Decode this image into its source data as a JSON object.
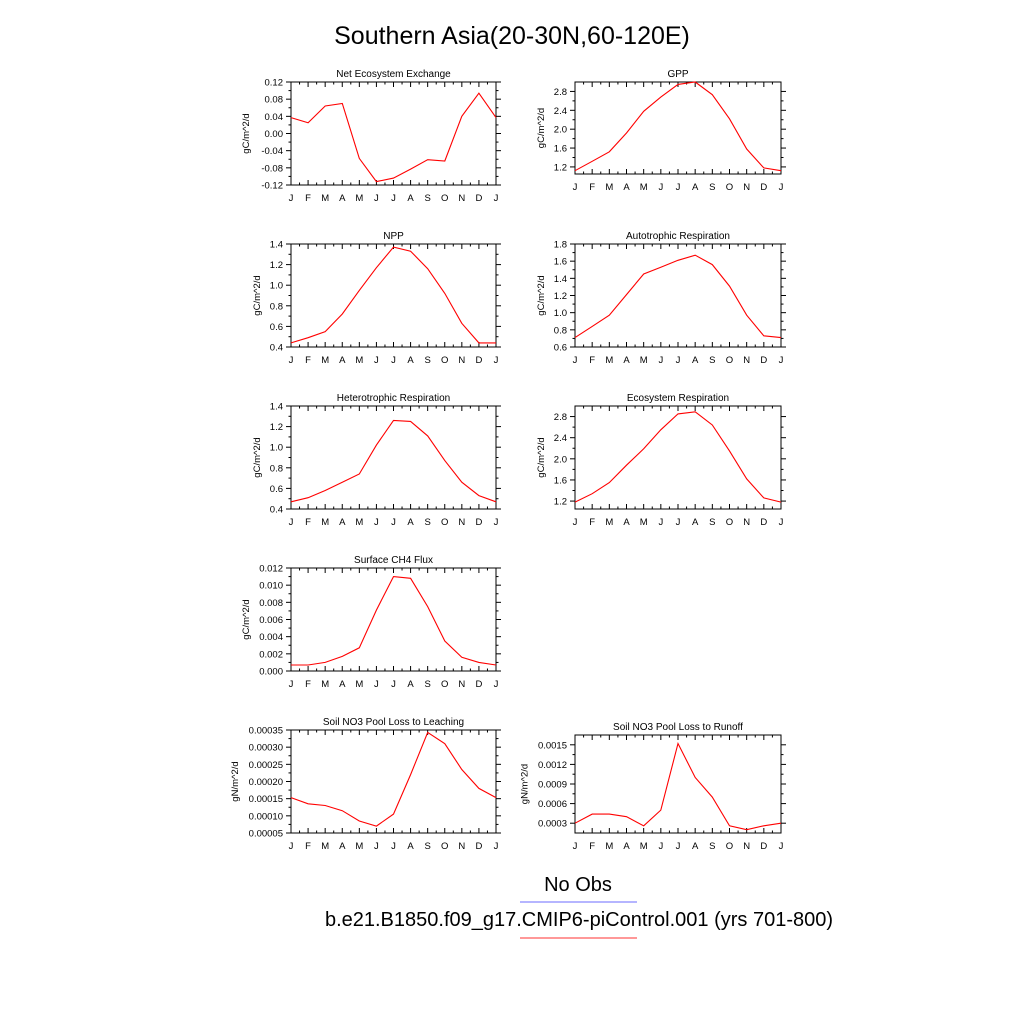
{
  "figure": {
    "title": "Southern Asia(20-30N,60-120E)",
    "legend": [
      {
        "label": "No Obs",
        "color": "#6b6bff"
      },
      {
        "label": "b.e21.B1850.f09_g17.CMIP6-piControl.001 (yrs 701-800)",
        "color": "#ff3030"
      }
    ]
  },
  "colors": {
    "series": "#ff0000",
    "axis": "#000000"
  },
  "chart_data": [
    {
      "type": "line",
      "title": "Net Ecosystem Exchange",
      "ylabel": "gC/m^2/d",
      "categories": [
        "J",
        "F",
        "M",
        "A",
        "M",
        "J",
        "J",
        "A",
        "S",
        "O",
        "N",
        "D",
        "J"
      ],
      "ylim": [
        -0.12,
        0.12
      ],
      "yticks": [
        "0.12",
        "0.08",
        "0.04",
        "0.00",
        "-0.04",
        "-0.08",
        "-0.12"
      ],
      "yticks_values": [
        0.12,
        0.08,
        0.04,
        0.0,
        -0.04,
        -0.08,
        -0.12
      ],
      "series": [
        {
          "values": [
            0.037,
            0.025,
            0.064,
            0.07,
            -0.058,
            -0.112,
            -0.104,
            -0.083,
            -0.061,
            -0.064,
            0.04,
            0.094,
            0.037
          ]
        }
      ]
    },
    {
      "type": "line",
      "title": "GPP",
      "ylabel": "gC/m^2/d",
      "categories": [
        "J",
        "F",
        "M",
        "A",
        "M",
        "J",
        "J",
        "A",
        "S",
        "O",
        "N",
        "D",
        "J"
      ],
      "ylim": [
        1.05,
        3.0
      ],
      "yticks": [
        "2.8",
        "2.4",
        "2.0",
        "1.6",
        "1.2"
      ],
      "yticks_values": [
        2.8,
        2.4,
        2.0,
        1.6,
        1.2
      ],
      "series": [
        {
          "values": [
            1.12,
            1.32,
            1.52,
            1.92,
            2.38,
            2.68,
            2.95,
            3.0,
            2.73,
            2.22,
            1.58,
            1.18,
            1.12
          ]
        }
      ]
    },
    {
      "type": "line",
      "title": "NPP",
      "ylabel": "gC/m^2/d",
      "categories": [
        "J",
        "F",
        "M",
        "A",
        "M",
        "J",
        "J",
        "A",
        "S",
        "O",
        "N",
        "D",
        "J"
      ],
      "ylim": [
        0.4,
        1.4
      ],
      "yticks": [
        "1.4",
        "1.2",
        "1.0",
        "0.8",
        "0.6",
        "0.4"
      ],
      "yticks_values": [
        1.4,
        1.2,
        1.0,
        0.8,
        0.6,
        0.4
      ],
      "series": [
        {
          "values": [
            0.44,
            0.49,
            0.55,
            0.72,
            0.95,
            1.17,
            1.37,
            1.33,
            1.16,
            0.92,
            0.63,
            0.44,
            0.44
          ]
        }
      ]
    },
    {
      "type": "line",
      "title": "Autotrophic Respiration",
      "ylabel": "gC/m^2/d",
      "categories": [
        "J",
        "F",
        "M",
        "A",
        "M",
        "J",
        "J",
        "A",
        "S",
        "O",
        "N",
        "D",
        "J"
      ],
      "ylim": [
        0.6,
        1.8
      ],
      "yticks": [
        "1.8",
        "1.6",
        "1.4",
        "1.2",
        "1.0",
        "0.8",
        "0.6"
      ],
      "yticks_values": [
        1.8,
        1.6,
        1.4,
        1.2,
        1.0,
        0.8,
        0.6
      ],
      "series": [
        {
          "values": [
            0.71,
            0.84,
            0.97,
            1.21,
            1.45,
            1.53,
            1.61,
            1.67,
            1.56,
            1.31,
            0.97,
            0.73,
            0.71
          ]
        }
      ]
    },
    {
      "type": "line",
      "title": "Heterotrophic Respiration",
      "ylabel": "gC/m^2/d",
      "categories": [
        "J",
        "F",
        "M",
        "A",
        "M",
        "J",
        "J",
        "A",
        "S",
        "O",
        "N",
        "D",
        "J"
      ],
      "ylim": [
        0.4,
        1.4
      ],
      "yticks": [
        "1.4",
        "1.2",
        "1.0",
        "0.8",
        "0.6",
        "0.4"
      ],
      "yticks_values": [
        1.4,
        1.2,
        1.0,
        0.8,
        0.6,
        0.4
      ],
      "series": [
        {
          "values": [
            0.47,
            0.51,
            0.58,
            0.66,
            0.74,
            1.02,
            1.26,
            1.25,
            1.11,
            0.87,
            0.66,
            0.53,
            0.47
          ]
        }
      ]
    },
    {
      "type": "line",
      "title": "Ecosystem Respiration",
      "ylabel": "gC/m^2/d",
      "categories": [
        "J",
        "F",
        "M",
        "A",
        "M",
        "J",
        "J",
        "A",
        "S",
        "O",
        "N",
        "D",
        "J"
      ],
      "ylim": [
        1.05,
        3.0
      ],
      "yticks": [
        "2.8",
        "2.4",
        "2.0",
        "1.6",
        "1.2"
      ],
      "yticks_values": [
        2.8,
        2.4,
        2.0,
        1.6,
        1.2
      ],
      "series": [
        {
          "values": [
            1.18,
            1.34,
            1.55,
            1.88,
            2.19,
            2.55,
            2.85,
            2.89,
            2.64,
            2.15,
            1.62,
            1.26,
            1.18
          ]
        }
      ]
    },
    {
      "type": "line",
      "title": "Surface CH4 Flux",
      "ylabel": "gC/m^2/d",
      "categories": [
        "J",
        "F",
        "M",
        "A",
        "M",
        "J",
        "J",
        "A",
        "S",
        "O",
        "N",
        "D",
        "J"
      ],
      "ylim": [
        0.0,
        0.012
      ],
      "yticks": [
        "0.012",
        "0.010",
        "0.008",
        "0.006",
        "0.004",
        "0.002",
        "0.000"
      ],
      "yticks_values": [
        0.012,
        0.01,
        0.008,
        0.006,
        0.004,
        0.002,
        0.0
      ],
      "series": [
        {
          "values": [
            0.0007,
            0.0007,
            0.001,
            0.0017,
            0.0027,
            0.0071,
            0.011,
            0.0108,
            0.0075,
            0.0035,
            0.0016,
            0.001,
            0.0007
          ]
        }
      ]
    },
    {
      "type": "line",
      "title": "Soil NO3 Pool Loss to Leaching",
      "ylabel": "gN/m^2/d",
      "categories": [
        "J",
        "F",
        "M",
        "A",
        "M",
        "J",
        "J",
        "A",
        "S",
        "O",
        "N",
        "D",
        "J"
      ],
      "ylim": [
        5e-05,
        0.00035
      ],
      "yticks": [
        "0.00035",
        "0.00030",
        "0.00025",
        "0.00020",
        "0.00015",
        "0.00010",
        "0.00005"
      ],
      "yticks_values": [
        0.00035,
        0.0003,
        0.00025,
        0.0002,
        0.00015,
        0.0001,
        5e-05
      ],
      "series": [
        {
          "values": [
            0.000153,
            0.000135,
            0.00013,
            0.000115,
            8.5e-05,
            7e-05,
            0.000105,
            0.00022,
            0.000343,
            0.00031,
            0.000235,
            0.00018,
            0.000153
          ]
        }
      ]
    },
    {
      "type": "line",
      "title": "Soil NO3 Pool Loss to Runoff",
      "ylabel": "gN/m^2/d",
      "categories": [
        "J",
        "F",
        "M",
        "A",
        "M",
        "J",
        "J",
        "A",
        "S",
        "O",
        "N",
        "D",
        "J"
      ],
      "ylim": [
        0.00015,
        0.00165
      ],
      "yticks": [
        "0.0015",
        "0.0012",
        "0.0009",
        "0.0006",
        "0.0003"
      ],
      "yticks_values": [
        0.0015,
        0.0012,
        0.0009,
        0.0006,
        0.0003
      ],
      "series": [
        {
          "values": [
            0.0003,
            0.00044,
            0.00044,
            0.0004,
            0.00026,
            0.0005,
            0.00152,
            0.001,
            0.0007,
            0.00026,
            0.0002,
            0.00026,
            0.0003
          ]
        }
      ]
    }
  ]
}
